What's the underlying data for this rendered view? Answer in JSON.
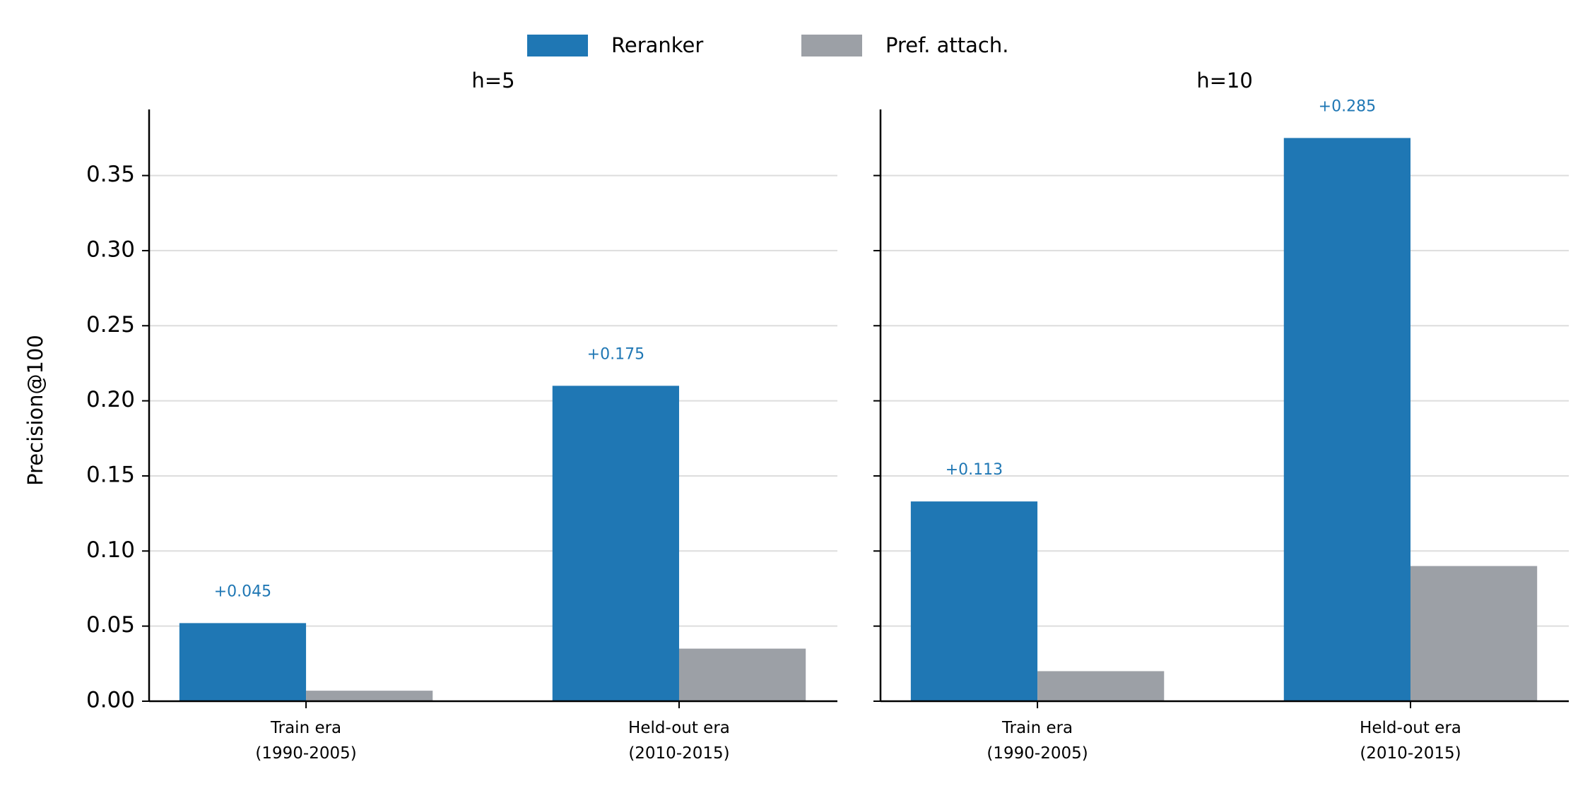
{
  "chart_data": [
    {
      "type": "bar",
      "title": "h=5",
      "y_label": "Precision@100",
      "categories": [
        "Train era\n(1990-2005)",
        "Held-out era\n(2010-2015)"
      ],
      "series": [
        {
          "name": "Reranker",
          "color": "#1f77b4",
          "values": [
            0.052,
            0.21
          ]
        },
        {
          "name": "Pref. attach.",
          "color": "#9ca0a6",
          "values": [
            0.007,
            0.035
          ]
        }
      ],
      "annotations": [
        "+0.045",
        "+0.175"
      ],
      "ylim": [
        0,
        0.394
      ],
      "yticks": [
        {
          "value": 0,
          "label": "0.00"
        },
        0.05,
        {
          "value": 0.1,
          "label": "0.10"
        },
        0.15,
        {
          "value": 0.2,
          "label": "0.20"
        },
        0.25,
        {
          "value": 0.3,
          "label": "0.30"
        },
        0.35
      ],
      "grid": true,
      "show_ytick_labels": true
    },
    {
      "type": "bar",
      "title": "h=10",
      "categories": [
        "Train era\n(1990-2005)",
        "Held-out era\n(2010-2015)"
      ],
      "series": [
        {
          "name": "Reranker",
          "color": "#1f77b4",
          "values": [
            0.133,
            0.375
          ]
        },
        {
          "name": "Pref. attach.",
          "color": "#9ca0a6",
          "values": [
            0.02,
            0.09
          ]
        }
      ],
      "annotations": [
        "+0.113",
        "+0.285"
      ],
      "ylim": [
        0,
        0.394
      ],
      "yticks": [
        0,
        0.05,
        0.1,
        0.15,
        0.2,
        0.25,
        0.3,
        0.35
      ],
      "grid": true,
      "show_ytick_labels": false
    }
  ]
}
